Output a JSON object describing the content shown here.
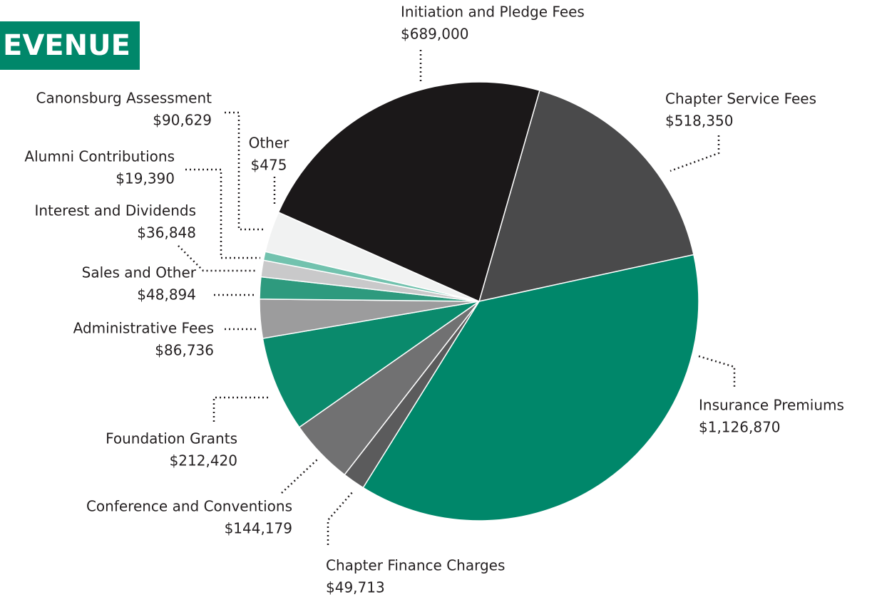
{
  "chart_data": {
    "type": "pie",
    "title": "EVENUE",
    "categories": [
      "Chapter Service Fees",
      "Insurance Premiums",
      "Chapter Finance Charges",
      "Conference and Conventions",
      "Foundation Grants",
      "Administrative Fees",
      "Sales and Other",
      "Interest and Dividends",
      "Alumni Contributions",
      "Canonsburg Assessment",
      "Other",
      "Initiation and Pledge Fees"
    ],
    "values": [
      518350,
      1126870,
      49713,
      144179,
      212420,
      86736,
      48894,
      36848,
      19390,
      90629,
      475,
      689000
    ],
    "value_labels": [
      "$518,350",
      "$1,126,870",
      "$49,713",
      "$144,179",
      "$212,420",
      "$86,736",
      "$48,894",
      "$36,848",
      "$19,390",
      "$90,629",
      "$475",
      "$689,000"
    ],
    "colors": [
      "#4a4a4b",
      "#00876a",
      "#5b5b5c",
      "#717172",
      "#0a8a6c",
      "#9c9c9d",
      "#2e9a7e",
      "#c9c9ca",
      "#72c2ae",
      "#f1f2f2",
      "#b9ddd4",
      "#1b1819"
    ]
  }
}
